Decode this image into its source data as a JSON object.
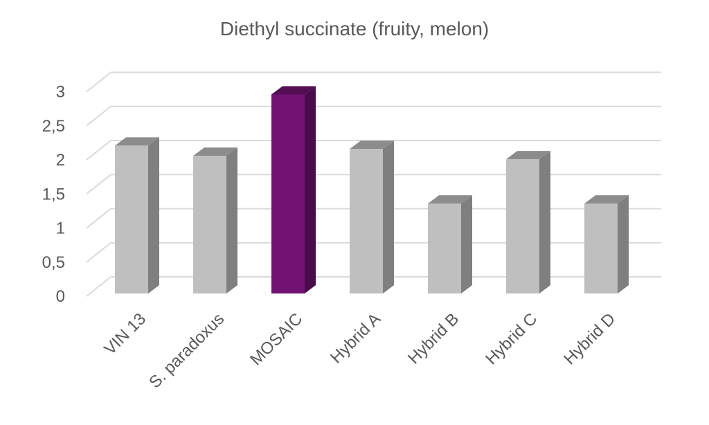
{
  "chart_data": {
    "type": "bar",
    "title": "Diethyl succinate (fruity, melon)",
    "categories": [
      "VIN 13",
      "S. paradoxus",
      "MOSAIC",
      "Hybrid A",
      "Hybrid B",
      "Hybrid C",
      "Hybrid D"
    ],
    "values": [
      2.25,
      2.1,
      3.0,
      2.2,
      1.4,
      2.05,
      1.4
    ],
    "ylim": [
      0,
      3
    ],
    "yticks": [
      "0",
      "0,5",
      "1",
      "1,5",
      "2",
      "2,5",
      "3"
    ],
    "grid": true,
    "legend": "none",
    "style": "3d-column",
    "colors": {
      "default_front": "#bfbfbf",
      "default_side": "#7f7f7f",
      "default_top": "#8c8c8c",
      "highlight_front": "#721373",
      "highlight_side": "#4a0b4b",
      "highlight_top": "#520d53",
      "highlight_category": "MOSAIC",
      "grid": "#d9d9d9",
      "text": "#595959"
    }
  }
}
